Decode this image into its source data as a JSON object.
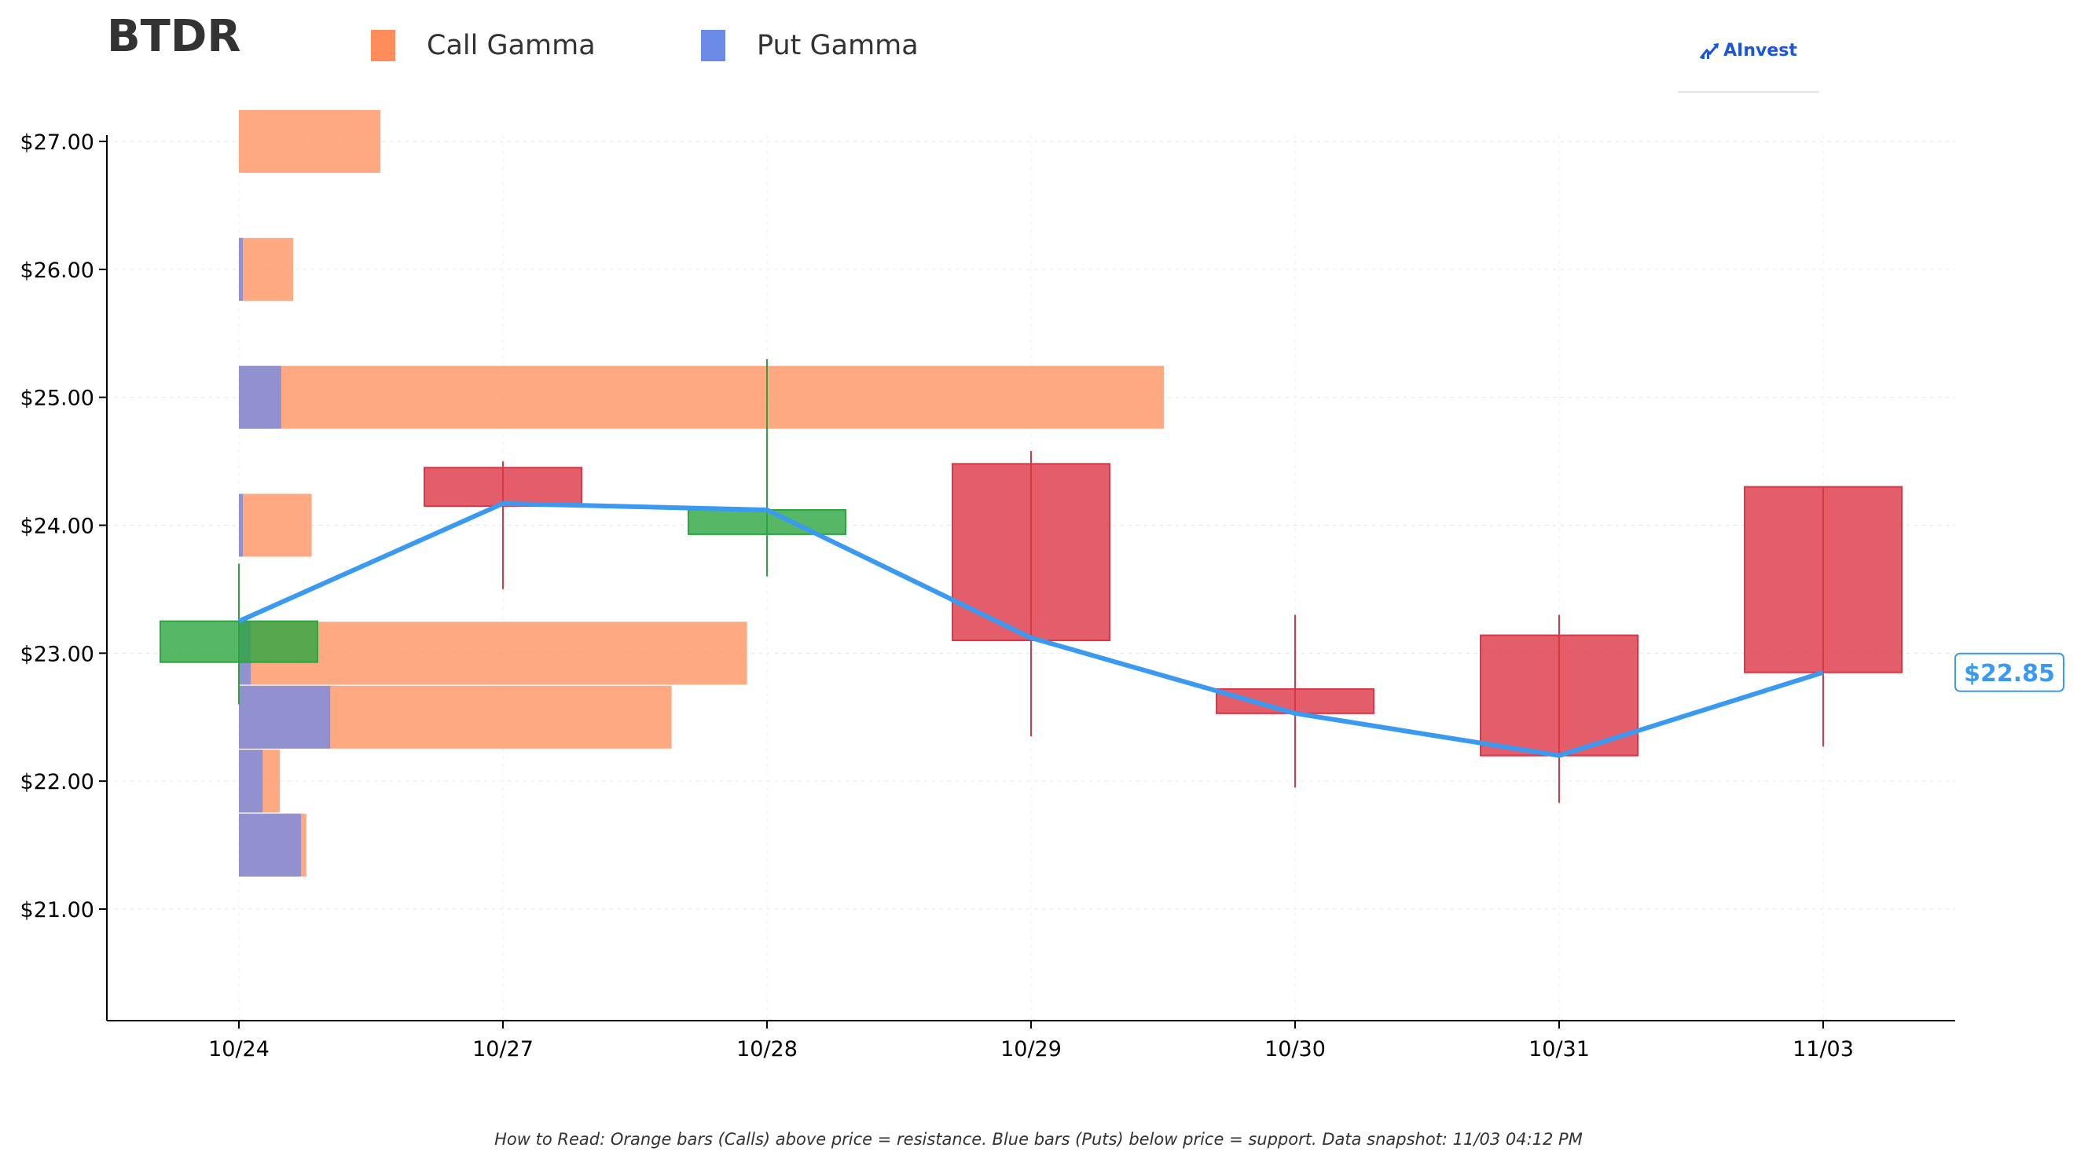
{
  "title": "BTDR",
  "legend": [
    {
      "label": "Call Gamma",
      "color": "#FF8C5A"
    },
    {
      "label": "Put Gamma",
      "color": "#6C8AE8"
    }
  ],
  "brand": {
    "name": "AInvest",
    "icon": "ainvest-logo-icon"
  },
  "footnote": "How to Read: Orange bars (Calls) above price = resistance. Blue bars (Puts) below price = support. Data snapshot: 11/03 04:12 PM",
  "colors": {
    "call": "#FF8C5A",
    "put": "#6C8AE8",
    "up": "#2CA540",
    "down": "#DC3545",
    "price_line": "#3A99F0"
  },
  "chart_data": {
    "type": "candlestick",
    "categories": [
      "10/24",
      "10/27",
      "10/28",
      "10/29",
      "10/30",
      "10/31",
      "11/03"
    ],
    "y_ticks": [
      "$21.00",
      "$22.00",
      "$23.00",
      "$24.00",
      "$25.00",
      "$26.00",
      "$27.00"
    ],
    "y_tick_values": [
      21,
      22,
      23,
      24,
      25,
      26,
      27
    ],
    "ylim": [
      20.12,
      27.0
    ],
    "candles": [
      {
        "date": "10/24",
        "open": 22.93,
        "high": 23.7,
        "low": 22.6,
        "close": 23.25
      },
      {
        "date": "10/27",
        "open": 24.45,
        "high": 24.5,
        "low": 23.5,
        "close": 24.15
      },
      {
        "date": "10/28",
        "open": 23.93,
        "high": 25.3,
        "low": 23.6,
        "close": 24.12
      },
      {
        "date": "10/29",
        "open": 24.48,
        "high": 24.58,
        "low": 22.35,
        "close": 23.1
      },
      {
        "date": "10/30",
        "open": 22.72,
        "high": 23.3,
        "low": 21.95,
        "close": 22.53
      },
      {
        "date": "10/31",
        "open": 23.14,
        "high": 23.3,
        "low": 21.83,
        "close": 22.2
      },
      {
        "date": "11/03",
        "open": 24.3,
        "high": 24.3,
        "low": 22.27,
        "close": 22.85
      }
    ],
    "price_line": [
      23.25,
      24.17,
      24.12,
      23.12,
      22.53,
      22.2,
      22.85
    ],
    "last_price_label": "$22.85",
    "gamma_bars": [
      {
        "strike": 27.0,
        "call": 1.07,
        "put": 0.0
      },
      {
        "strike": 26.0,
        "call": 0.41,
        "put": 0.03
      },
      {
        "strike": 25.0,
        "call": 6.99,
        "put": 0.32
      },
      {
        "strike": 24.0,
        "call": 0.55,
        "put": 0.03
      },
      {
        "strike": 23.0,
        "call": 3.84,
        "put": 0.09
      },
      {
        "strike": 22.5,
        "call": 3.27,
        "put": 0.69
      },
      {
        "strike": 22.0,
        "call": 0.31,
        "put": 0.18
      },
      {
        "strike": 21.5,
        "call": 0.51,
        "put": 0.47
      }
    ],
    "grid": true
  }
}
